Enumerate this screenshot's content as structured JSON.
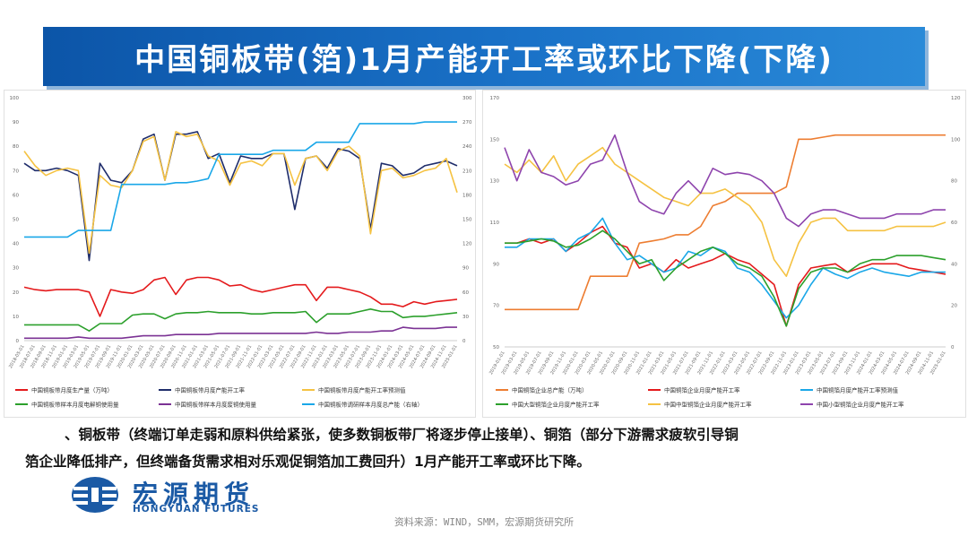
{
  "title": "中国铜板带(箔)1月产能开工率或环比下降(下降)",
  "paragraph": {
    "line1": "、铜板带（终端订单走弱和原料供给紧张，使多数铜板带厂将逐步停止接单）、铜箔（部分下游需求疲软引导铜",
    "line2": "箔企业降低排产，但终端备货需求相对乐观促铜箔加工费回升）1月产能开工率或环比下降。"
  },
  "logo": {
    "cn": "宏源期货",
    "en": "HONGYUAN FUTURES"
  },
  "source": "资料来源：WIND，SMM，宏源期货研究所",
  "chart_data": [
    {
      "type": "line",
      "ylim_left": [
        0,
        100
      ],
      "left_ticks": [
        "0",
        "10",
        "20",
        "30",
        "40",
        "50",
        "60",
        "70",
        "80",
        "90",
        "100"
      ],
      "ylim_right": [
        0,
        300
      ],
      "right_ticks": [
        "0",
        "30",
        "60",
        "90",
        "120",
        "150",
        "180",
        "210",
        "240",
        "270",
        "300"
      ],
      "x_dates": [
        "2018-05-01",
        "2018-07-01",
        "2018-09-01",
        "2018-11-01",
        "2019-01-01",
        "2019-03-01",
        "2019-05-01",
        "2019-07-01",
        "2019-09-01",
        "2019-11-01",
        "2020-01-01",
        "2020-03-01",
        "2020-05-01",
        "2020-07-01",
        "2020-09-01",
        "2020-11-01",
        "2021-01-01",
        "2021-03-01",
        "2021-05-01",
        "2021-07-01",
        "2021-09-01",
        "2021-11-01",
        "2022-01-01",
        "2022-03-01",
        "2022-05-01",
        "2022-07-01",
        "2022-09-01",
        "2022-11-01",
        "2023-01-01",
        "2023-03-01",
        "2023-05-01",
        "2023-07-01",
        "2023-09-01",
        "2023-11-01",
        "2024-01-01",
        "2024-03-01",
        "2024-05-01",
        "2024-07-01",
        "2024-09-01",
        "2024-11-01",
        "2025-01-01"
      ],
      "series": [
        {
          "name": "中国铜板带月度生产量（万吨）",
          "color": "#e41a1c",
          "axis": "left",
          "values": [
            22,
            21,
            20.5,
            21,
            21,
            21,
            20,
            10,
            21,
            20,
            19.5,
            21,
            25,
            26,
            19,
            25,
            26,
            26,
            25,
            22.5,
            23,
            21,
            20,
            21,
            22,
            23,
            23,
            16.5,
            22,
            22,
            21,
            20,
            18,
            15,
            15,
            14,
            16,
            15,
            16,
            16.5,
            17
          ]
        },
        {
          "name": "中国铜板带月度产能开工率",
          "color": "#1f2d6b",
          "axis": "left",
          "values": [
            73,
            70,
            70,
            71,
            70,
            68,
            33,
            73,
            66,
            65,
            70,
            83,
            85,
            66,
            85,
            85,
            86,
            75,
            77,
            65,
            76,
            75,
            75,
            77,
            77,
            54,
            75,
            76,
            71,
            79,
            78,
            75,
            46,
            73,
            72,
            68,
            69,
            72,
            73,
            74,
            72
          ]
        },
        {
          "name": "中国铜板带月度产能开工率预测值",
          "color": "#f5c242",
          "axis": "left",
          "values": [
            78,
            72,
            68,
            70,
            71,
            70,
            36,
            68,
            64,
            63,
            70,
            82,
            84,
            66,
            86,
            84,
            85,
            76,
            74,
            64,
            73,
            74,
            72,
            77,
            77,
            64,
            75,
            76,
            70,
            78,
            80,
            76,
            44,
            70,
            71,
            67,
            68,
            70,
            71,
            75,
            61
          ]
        },
        {
          "name": "中国铜板带样本月度电解铜使用量",
          "color": "#2ca02c",
          "axis": "left",
          "values": [
            6.5,
            6.5,
            6.5,
            6.5,
            6.5,
            6.5,
            4,
            7,
            7,
            7,
            10.5,
            11,
            11,
            9,
            11,
            11.5,
            11.5,
            12,
            11.5,
            11.5,
            11.5,
            11,
            11,
            11.5,
            11.5,
            11.5,
            12,
            7.5,
            11,
            11,
            11,
            12,
            13,
            12,
            12,
            9.5,
            10,
            10,
            10.5,
            11,
            11.5
          ]
        },
        {
          "name": "中国铜板带样本月度废铜使用量",
          "color": "#7b3294",
          "axis": "left",
          "values": [
            1,
            1,
            1,
            1,
            1,
            1.5,
            1,
            1,
            1,
            1,
            1.5,
            2,
            2,
            2,
            2.5,
            2.5,
            2.5,
            2.5,
            3,
            3,
            3,
            3,
            3,
            3,
            3,
            3,
            3,
            3.5,
            3,
            3,
            3.5,
            3.5,
            3.5,
            4,
            4,
            5.5,
            5,
            5,
            5,
            5.5,
            5.5
          ]
        },
        {
          "name": "中国铜板带调研样本月度总产能（右轴）",
          "color": "#1aa7e8",
          "axis": "right",
          "values": [
            128,
            128,
            128,
            128,
            128,
            136,
            136,
            136,
            136,
            193,
            193,
            193,
            193,
            193,
            195,
            195,
            197,
            200,
            230,
            230,
            230,
            230,
            230,
            235,
            235,
            235,
            235,
            245,
            245,
            245,
            245,
            268,
            268,
            268,
            268,
            268,
            268,
            270,
            270,
            270,
            270
          ]
        }
      ]
    },
    {
      "type": "line",
      "ylim_left": [
        50,
        170
      ],
      "left_ticks": [
        "50",
        "70",
        "90",
        "110",
        "130",
        "150",
        "170"
      ],
      "ylim_right": [
        0,
        120
      ],
      "right_ticks": [
        "0",
        "20",
        "40",
        "60",
        "80",
        "100",
        "120"
      ],
      "x_dates": [
        "2019-01-01",
        "2019-03-01",
        "2019-05-01",
        "2019-07-01",
        "2019-09-01",
        "2019-11-01",
        "2020-01-01",
        "2020-03-01",
        "2020-05-01",
        "2020-07-01",
        "2020-09-01",
        "2020-11-01",
        "2021-01-01",
        "2021-03-01",
        "2021-05-01",
        "2021-07-01",
        "2021-09-01",
        "2021-11-01",
        "2022-01-01",
        "2022-03-01",
        "2022-05-01",
        "2022-07-01",
        "2022-09-01",
        "2022-11-01",
        "2023-01-01",
        "2023-03-01",
        "2023-05-01",
        "2023-07-01",
        "2023-09-01",
        "2023-11-01",
        "2024-01-01",
        "2024-03-01",
        "2024-05-01",
        "2024-07-01",
        "2024-09-01",
        "2024-11-01",
        "2025-01-01"
      ],
      "series": [
        {
          "name": "中国铜箔企业总产能（万吨）",
          "color": "#ed7d31",
          "axis": "left",
          "values": [
            68,
            68,
            68,
            68,
            68,
            68,
            68,
            84,
            84,
            84,
            84,
            100,
            101,
            102,
            104,
            104,
            108,
            118,
            120,
            124,
            124,
            124,
            124,
            127,
            150,
            150,
            151,
            152,
            152,
            152,
            152,
            152,
            152,
            152,
            152,
            152,
            152
          ]
        },
        {
          "name": "中国铜箔企业月度产能开工率",
          "color": "#e41a1c",
          "axis": "right",
          "values": [
            50,
            50,
            52,
            50,
            52,
            46,
            50,
            55,
            58,
            50,
            48,
            38,
            40,
            36,
            42,
            38,
            40,
            42,
            45,
            42,
            40,
            35,
            30,
            10,
            30,
            38,
            39,
            40,
            36,
            38,
            40,
            40,
            40,
            38,
            37,
            36,
            35
          ]
        },
        {
          "name": "中国铜箔月度产能开工率预测值",
          "color": "#1aa7e8",
          "axis": "right",
          "values": [
            48,
            48,
            52,
            52,
            52,
            46,
            52,
            55,
            62,
            50,
            42,
            44,
            40,
            36,
            38,
            46,
            44,
            48,
            46,
            38,
            36,
            30,
            22,
            14,
            20,
            30,
            38,
            35,
            33,
            36,
            38,
            36,
            35,
            34,
            36,
            36,
            36
          ]
        },
        {
          "name": "中国大型铜箔企业月度产能开工率",
          "color": "#2ca02c",
          "axis": "right",
          "values": [
            50,
            50,
            51,
            52,
            51,
            48,
            49,
            52,
            56,
            52,
            46,
            40,
            42,
            32,
            38,
            42,
            46,
            48,
            45,
            40,
            38,
            34,
            24,
            10,
            28,
            36,
            38,
            38,
            36,
            40,
            42,
            42,
            44,
            44,
            44,
            43,
            42
          ]
        },
        {
          "name": "中国中型铜箔企业月度产能开工率",
          "color": "#f5c242",
          "axis": "right",
          "values": [
            88,
            84,
            90,
            84,
            92,
            80,
            88,
            92,
            96,
            88,
            84,
            80,
            76,
            72,
            70,
            68,
            74,
            74,
            76,
            72,
            68,
            60,
            42,
            34,
            50,
            60,
            62,
            62,
            56,
            56,
            56,
            56,
            58,
            58,
            58,
            58,
            60
          ]
        },
        {
          "name": "中国小型铜箔企业月度产能开工率",
          "color": "#8e44ad",
          "axis": "right",
          "values": [
            96,
            80,
            95,
            84,
            82,
            78,
            80,
            88,
            90,
            102,
            84,
            70,
            66,
            64,
            74,
            80,
            74,
            86,
            83,
            84,
            83,
            80,
            74,
            62,
            58,
            64,
            66,
            66,
            64,
            62,
            62,
            62,
            64,
            64,
            64,
            66,
            66
          ]
        }
      ]
    }
  ]
}
